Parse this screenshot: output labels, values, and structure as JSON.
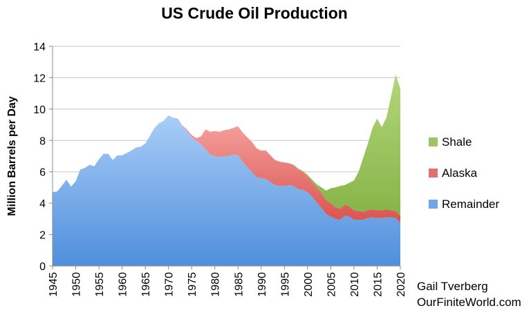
{
  "chart_data": {
    "type": "area",
    "title": "US Crude Oil Production",
    "xlabel": "",
    "ylabel": "Million Barrels per Day",
    "xlim": [
      1945,
      2020
    ],
    "ylim": [
      0,
      14
    ],
    "y_ticks": [
      0,
      2,
      4,
      6,
      8,
      10,
      12,
      14
    ],
    "x_ticks": [
      1945,
      1950,
      1955,
      1960,
      1965,
      1970,
      1975,
      1980,
      1985,
      1990,
      1995,
      2000,
      2005,
      2010,
      2015,
      2020
    ],
    "grid": "horizontal",
    "legend_position": "right",
    "stacked": true,
    "x": [
      1945,
      1946,
      1947,
      1948,
      1949,
      1950,
      1951,
      1952,
      1953,
      1954,
      1955,
      1956,
      1957,
      1958,
      1959,
      1960,
      1961,
      1962,
      1963,
      1964,
      1965,
      1966,
      1967,
      1968,
      1969,
      1970,
      1971,
      1972,
      1973,
      1974,
      1975,
      1976,
      1977,
      1978,
      1979,
      1980,
      1981,
      1982,
      1983,
      1984,
      1985,
      1986,
      1987,
      1988,
      1989,
      1990,
      1991,
      1992,
      1993,
      1994,
      1995,
      1996,
      1997,
      1998,
      1999,
      2000,
      2001,
      2002,
      2003,
      2004,
      2005,
      2006,
      2007,
      2008,
      2009,
      2010,
      2011,
      2012,
      2013,
      2014,
      2015,
      2016,
      2017,
      2018,
      2019,
      2020
    ],
    "series": [
      {
        "name": "Remainder",
        "color": "#6fa8e6",
        "values": [
          4.7,
          4.75,
          5.1,
          5.5,
          5.05,
          5.4,
          6.15,
          6.25,
          6.45,
          6.35,
          6.8,
          7.15,
          7.15,
          6.75,
          7.05,
          7.05,
          7.2,
          7.35,
          7.55,
          7.6,
          7.8,
          8.3,
          8.8,
          9.1,
          9.25,
          9.6,
          9.45,
          9.4,
          8.9,
          8.6,
          8.2,
          7.95,
          7.75,
          7.45,
          7.1,
          7.0,
          6.95,
          7.0,
          7.0,
          7.1,
          7.05,
          6.65,
          6.3,
          6.0,
          5.65,
          5.6,
          5.55,
          5.35,
          5.15,
          5.1,
          5.1,
          5.15,
          5.1,
          4.9,
          4.85,
          4.7,
          4.4,
          4.05,
          3.7,
          3.3,
          3.15,
          3.0,
          2.95,
          3.2,
          3.15,
          2.95,
          2.95,
          2.95,
          3.05,
          3.1,
          3.05,
          3.05,
          3.1,
          3.1,
          3.05,
          2.75
        ]
      },
      {
        "name": "Alaska",
        "color": "#e06f6f",
        "values": [
          0,
          0,
          0,
          0,
          0,
          0,
          0,
          0,
          0,
          0,
          0,
          0,
          0,
          0,
          0,
          0,
          0,
          0,
          0,
          0,
          0,
          0,
          0,
          0,
          0,
          0,
          0,
          0,
          0.05,
          0.1,
          0.15,
          0.2,
          0.5,
          1.25,
          1.45,
          1.6,
          1.6,
          1.65,
          1.7,
          1.7,
          1.85,
          1.85,
          1.9,
          1.9,
          1.85,
          1.75,
          1.8,
          1.7,
          1.6,
          1.55,
          1.5,
          1.4,
          1.3,
          1.25,
          1.15,
          1.0,
          0.95,
          0.95,
          0.95,
          0.9,
          0.85,
          0.75,
          0.7,
          0.7,
          0.65,
          0.6,
          0.55,
          0.5,
          0.5,
          0.5,
          0.5,
          0.5,
          0.5,
          0.45,
          0.45,
          0.45
        ]
      },
      {
        "name": "Shale",
        "color": "#9dc462",
        "values": [
          0,
          0,
          0,
          0,
          0,
          0,
          0,
          0,
          0,
          0,
          0,
          0,
          0,
          0,
          0,
          0,
          0,
          0,
          0,
          0,
          0,
          0,
          0,
          0,
          0,
          0,
          0,
          0,
          0,
          0,
          0,
          0,
          0,
          0,
          0,
          0,
          0,
          0,
          0,
          0,
          0,
          0,
          0,
          0,
          0,
          0,
          0,
          0,
          0,
          0,
          0,
          0,
          0.05,
          0.05,
          0.05,
          0.1,
          0.15,
          0.2,
          0.35,
          0.6,
          0.95,
          1.25,
          1.45,
          1.25,
          1.5,
          1.9,
          2.5,
          3.45,
          4.25,
          5.2,
          5.85,
          5.3,
          5.85,
          7.25,
          8.7,
          8.1
        ]
      }
    ]
  },
  "credit": {
    "line1": "Gail Tverberg",
    "line2": "OurFiniteWorld.com"
  }
}
